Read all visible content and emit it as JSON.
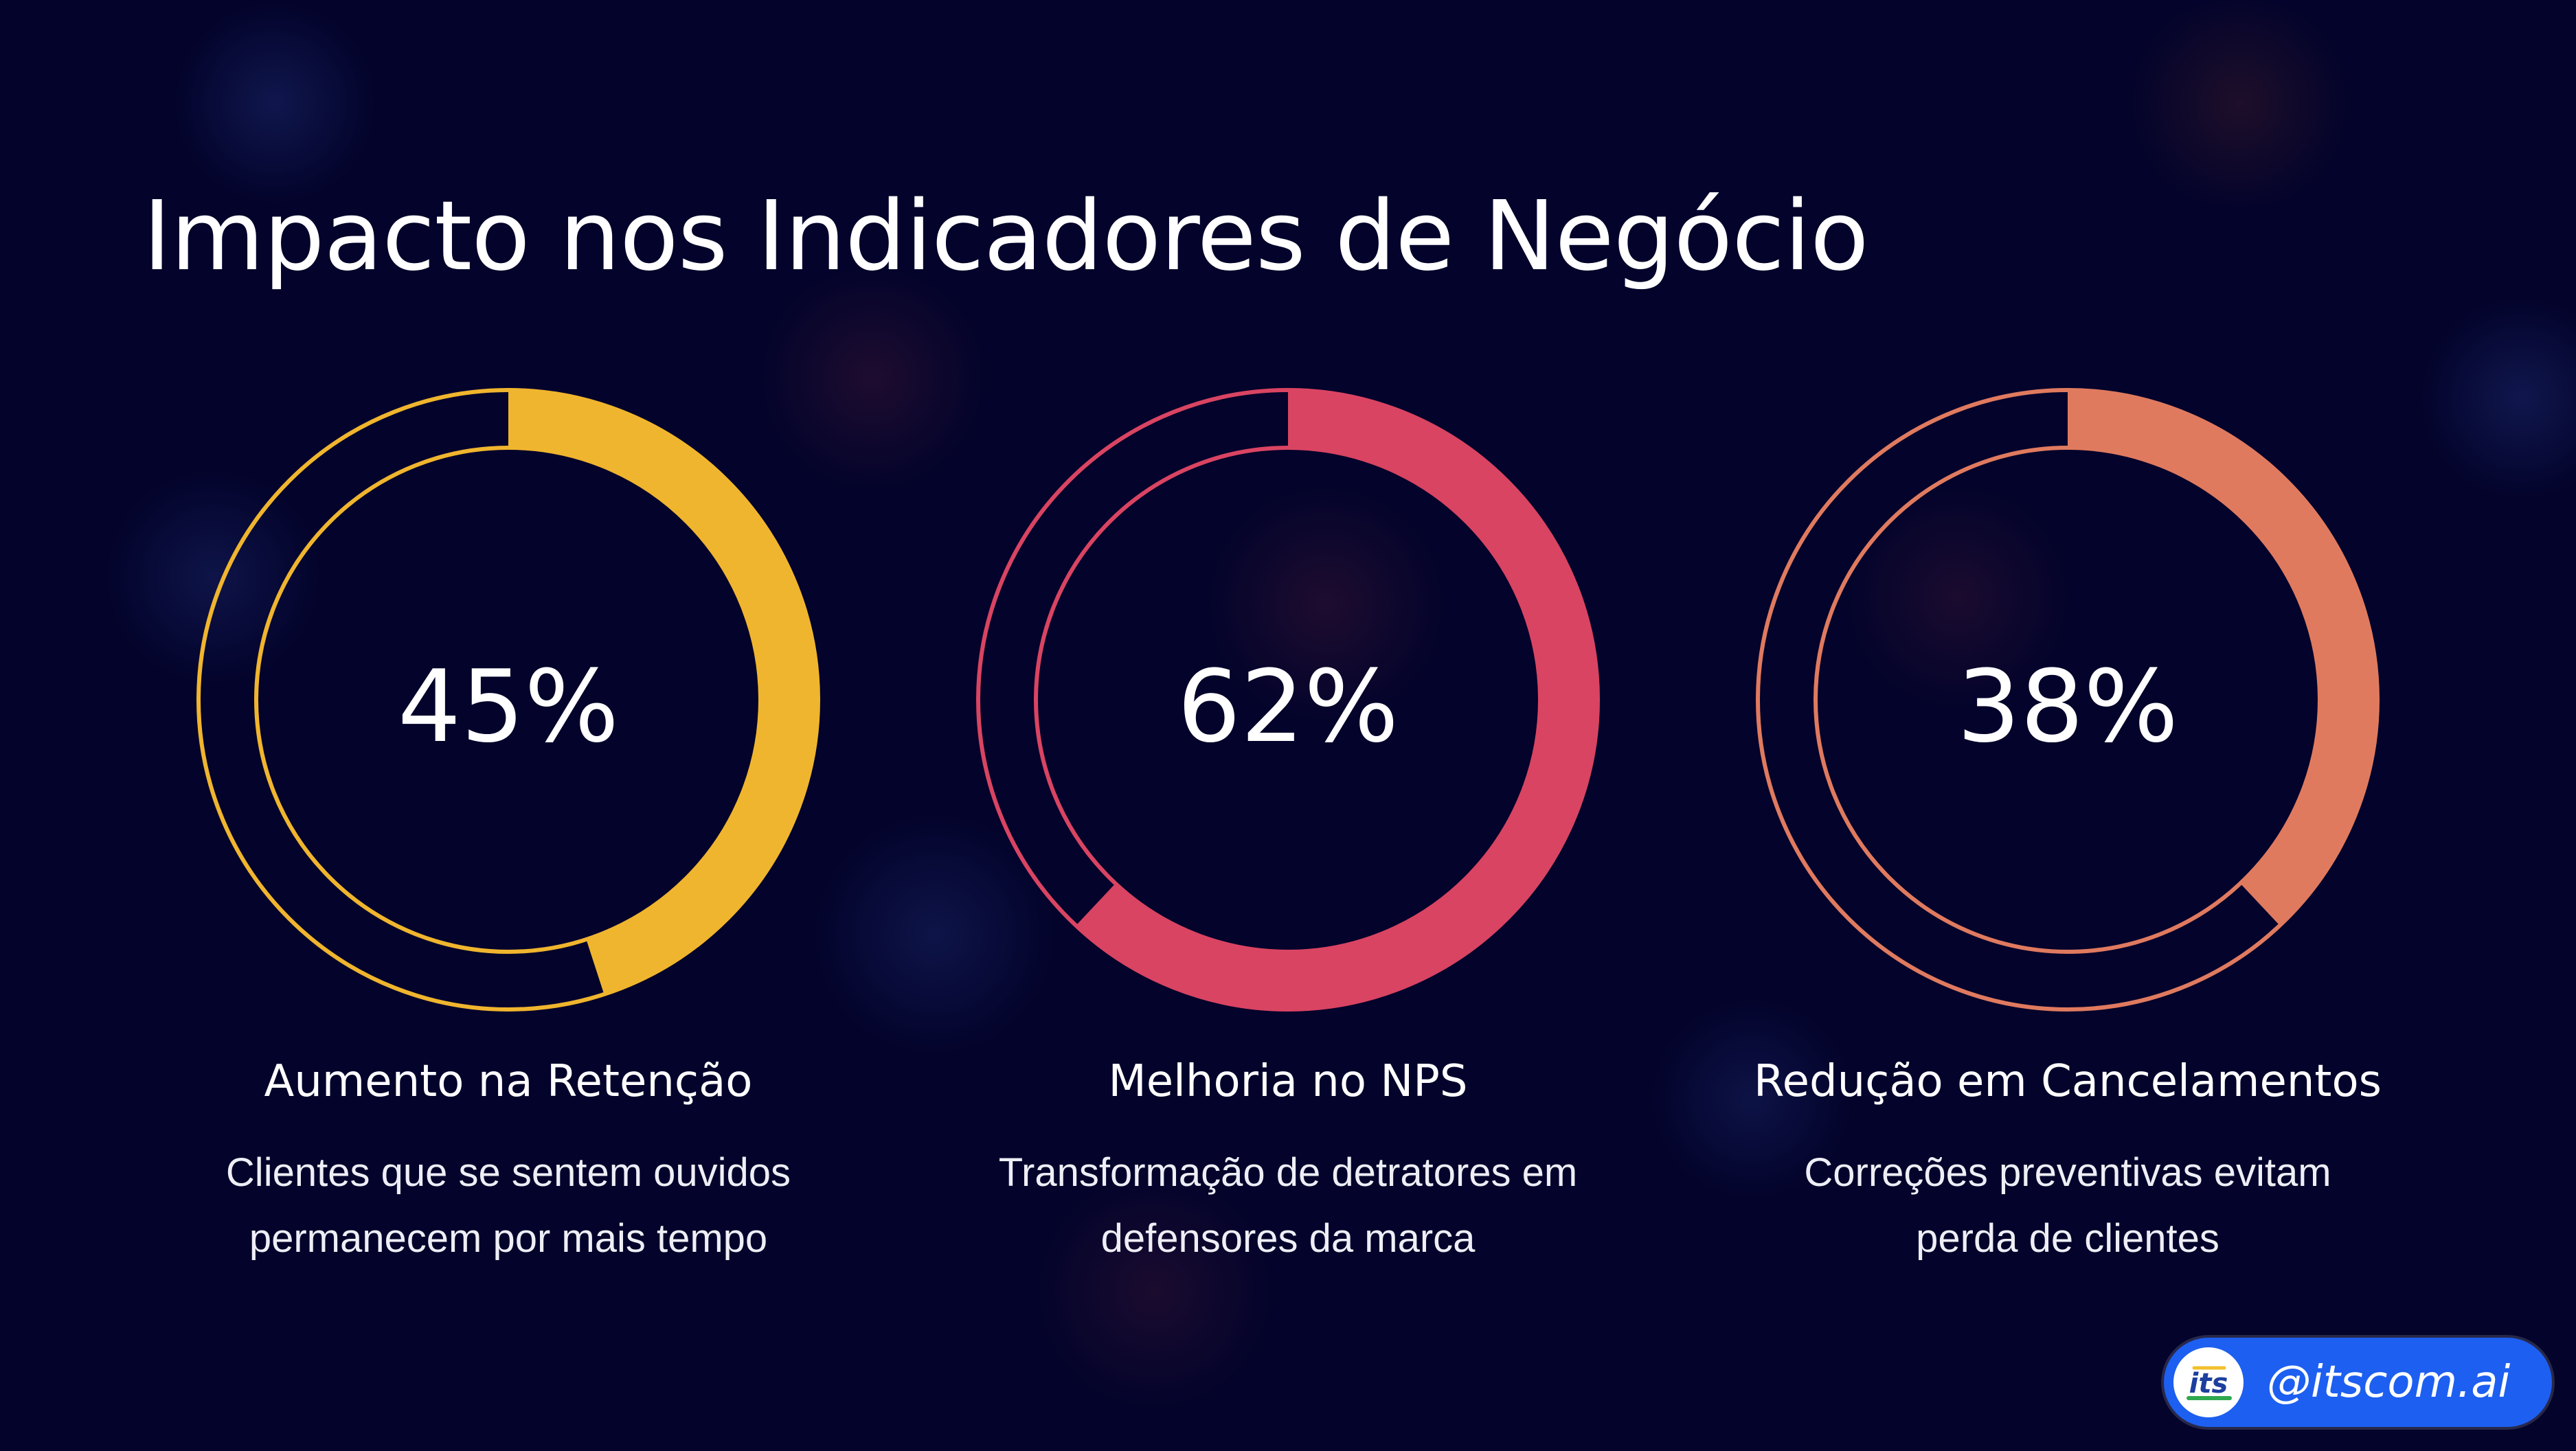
{
  "page": {
    "title": "Impacto nos Indicadores de Negócio"
  },
  "metrics": [
    {
      "value_label": "45%",
      "percent": 45,
      "label": "Aumento na Retenção",
      "description": "Clientes que se sentem ouvidos permanecem por mais tempo",
      "color": "#f0b52e"
    },
    {
      "value_label": "62%",
      "percent": 62,
      "label": "Melhoria no NPS",
      "description": "Transformação de detratores em defensores da marca",
      "color": "#d94462"
    },
    {
      "value_label": "38%",
      "percent": 38,
      "label": "Redução em Cancelamentos",
      "description": "Correções preventivas evitam perda de clientes",
      "color": "#e07a5f"
    }
  ],
  "brand": {
    "handle": "@itscom.ai",
    "logo_icon": "itscom-logo-icon"
  },
  "colors": {
    "background": "#03032b",
    "text": "#ffffff",
    "badge": "#1d5ff0"
  }
}
